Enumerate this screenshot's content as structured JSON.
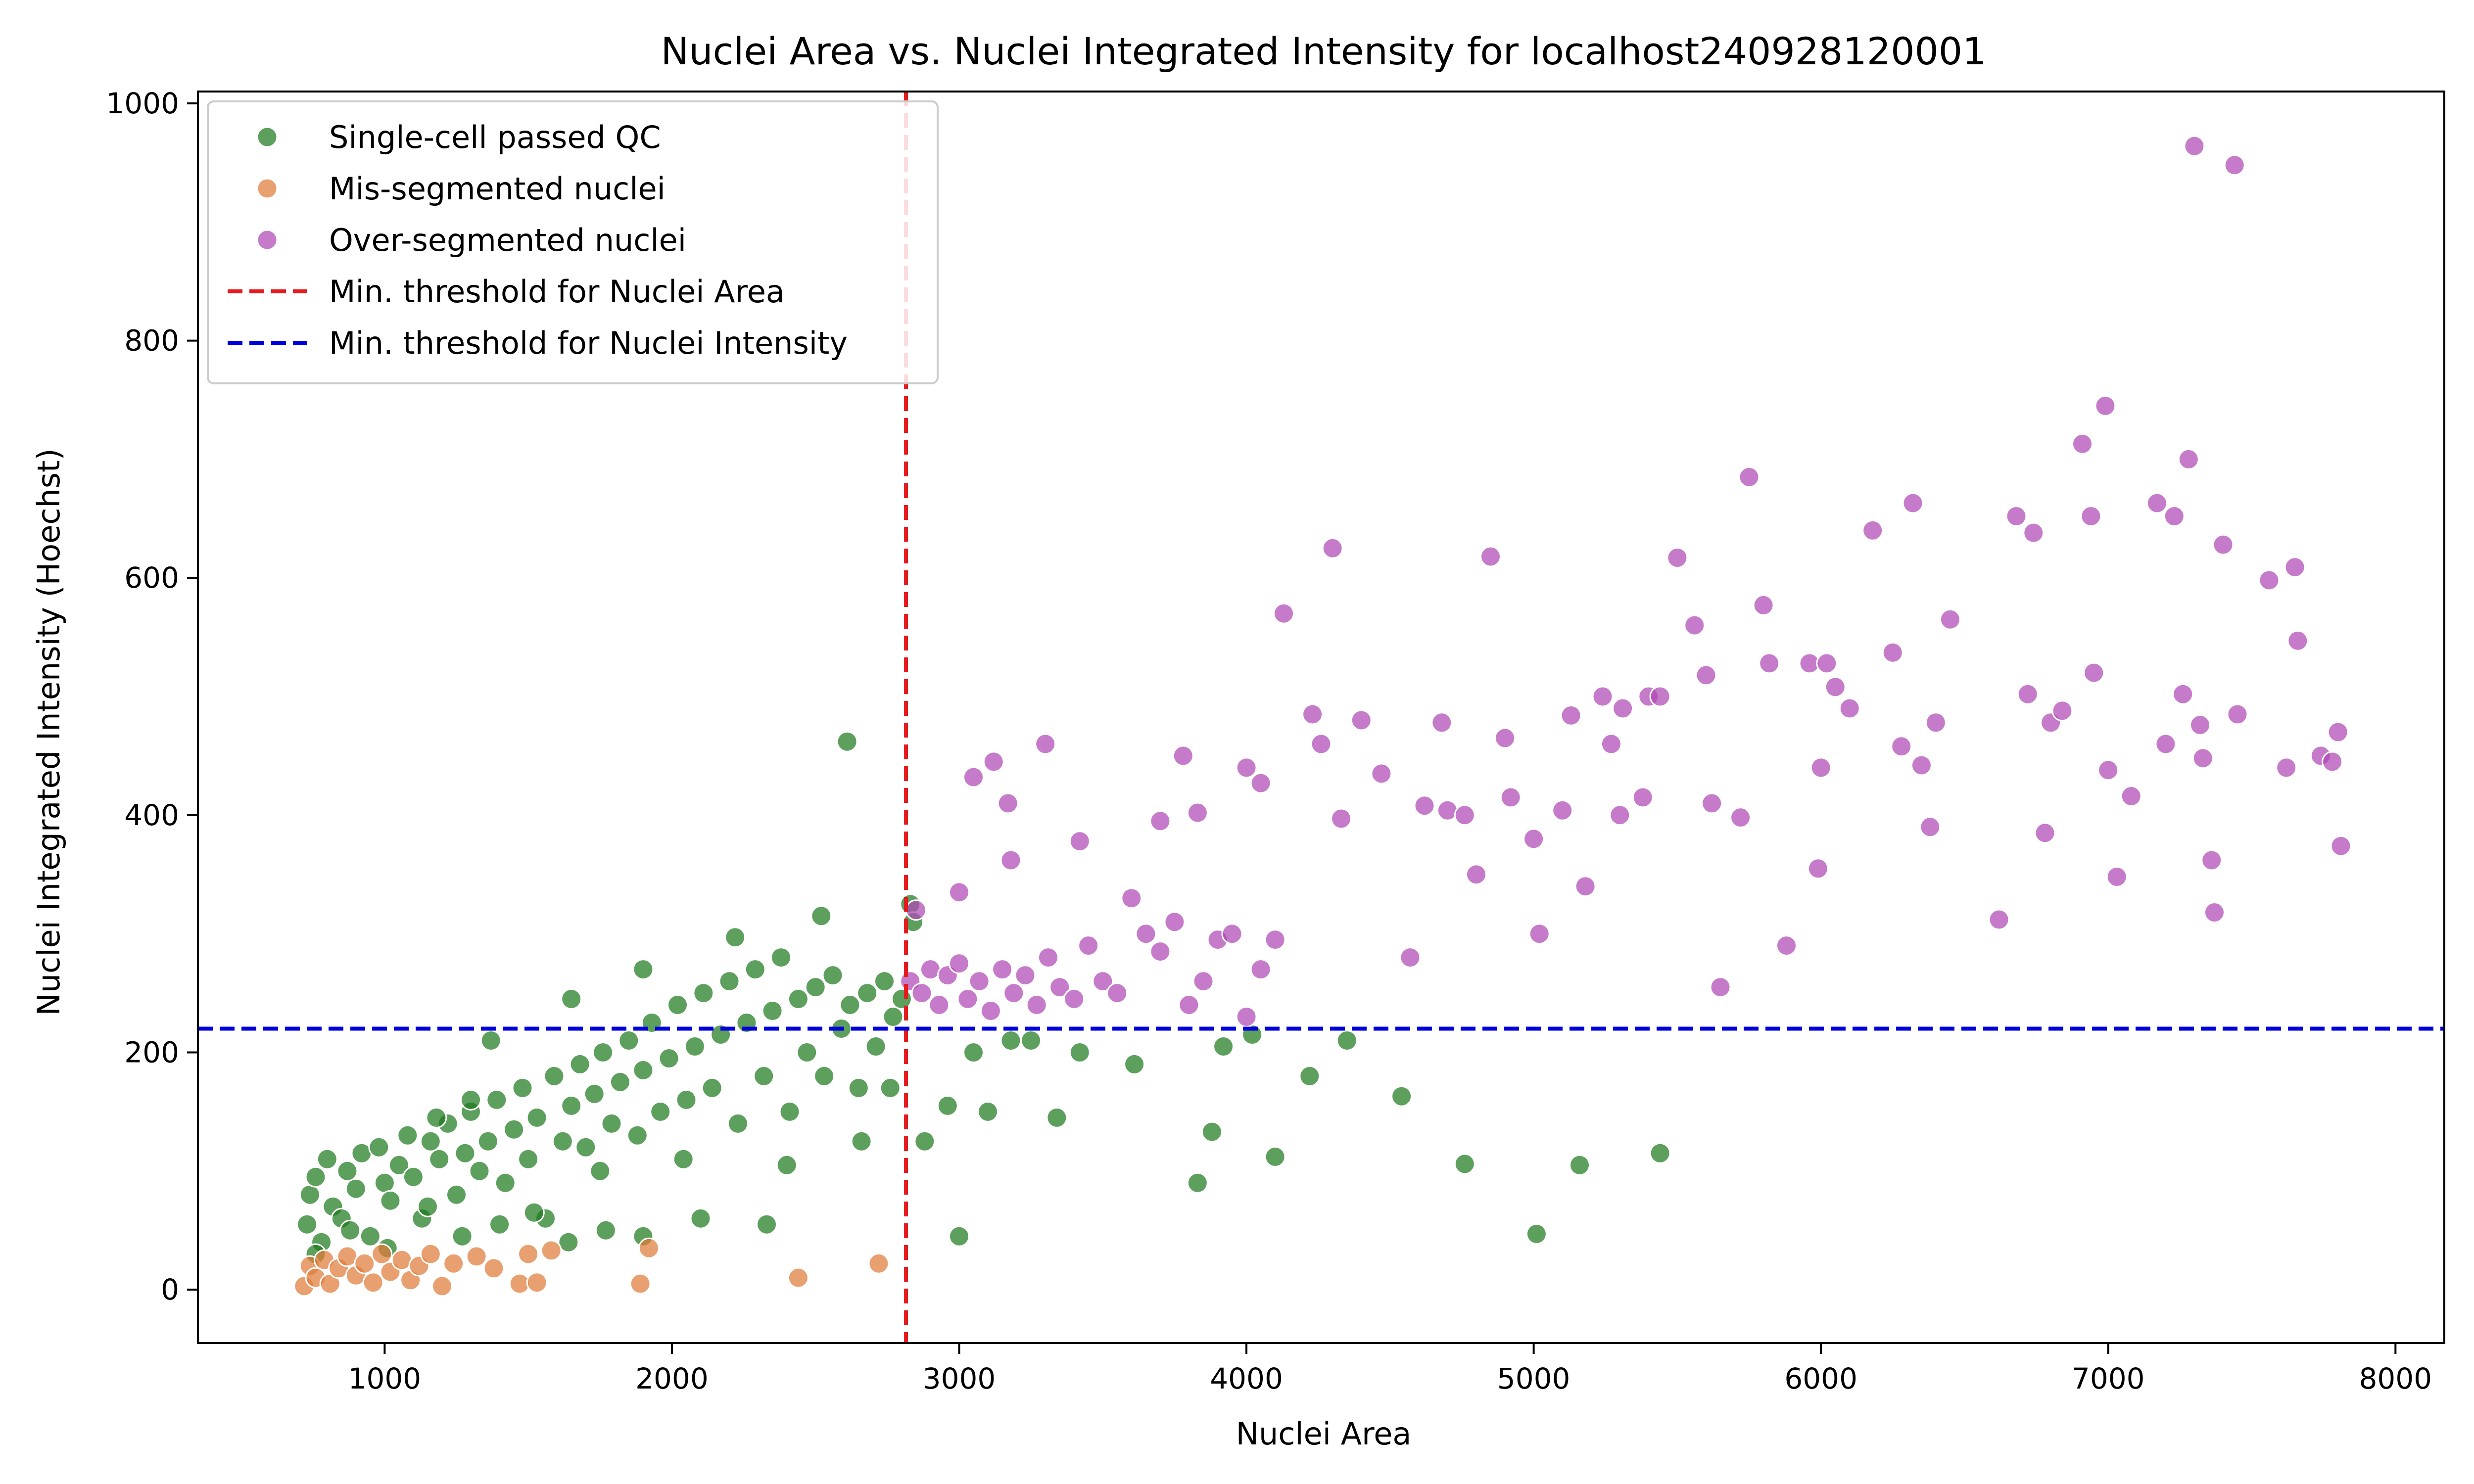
{
  "chart_data": {
    "type": "scatter",
    "title": "Nuclei Area vs. Nuclei Integrated Intensity for localhost240928120001",
    "xlabel": "Nuclei Area",
    "ylabel": "Nuclei Integrated Intensity (Hoechst)",
    "xlim": [
      350,
      8170
    ],
    "ylim": [
      -45,
      1010
    ],
    "xticks": [
      1000,
      2000,
      3000,
      4000,
      5000,
      6000,
      7000,
      8000
    ],
    "yticks": [
      0,
      200,
      400,
      600,
      800,
      1000
    ],
    "grid": false,
    "legend_position": "top-left",
    "thresholds": {
      "area": {
        "label": "Min. threshold for Nuclei Area",
        "value": 2815,
        "color": "#e41a1c"
      },
      "intensity": {
        "label": "Min. threshold for Nuclei Intensity",
        "value": 220,
        "color": "#0000dd"
      }
    },
    "series": [
      {
        "name": "Single-cell passed QC",
        "color": "#1f7a1f",
        "points": [
          [
            730,
            55
          ],
          [
            740,
            80
          ],
          [
            760,
            95
          ],
          [
            780,
            40
          ],
          [
            800,
            110
          ],
          [
            820,
            70
          ],
          [
            850,
            60
          ],
          [
            870,
            100
          ],
          [
            900,
            85
          ],
          [
            920,
            115
          ],
          [
            950,
            45
          ],
          [
            980,
            120
          ],
          [
            1000,
            90
          ],
          [
            1020,
            75
          ],
          [
            1050,
            105
          ],
          [
            1080,
            130
          ],
          [
            1100,
            95
          ],
          [
            1130,
            60
          ],
          [
            1160,
            125
          ],
          [
            1190,
            110
          ],
          [
            1220,
            140
          ],
          [
            1250,
            80
          ],
          [
            1280,
            115
          ],
          [
            1300,
            150
          ],
          [
            1330,
            100
          ],
          [
            1360,
            125
          ],
          [
            1390,
            160
          ],
          [
            1420,
            90
          ],
          [
            1450,
            135
          ],
          [
            1480,
            170
          ],
          [
            1500,
            110
          ],
          [
            1530,
            145
          ],
          [
            1560,
            60
          ],
          [
            1590,
            180
          ],
          [
            1620,
            125
          ],
          [
            1650,
            155
          ],
          [
            1680,
            190
          ],
          [
            1700,
            120
          ],
          [
            1730,
            165
          ],
          [
            1760,
            200
          ],
          [
            1790,
            140
          ],
          [
            1820,
            175
          ],
          [
            1850,
            210
          ],
          [
            1880,
            130
          ],
          [
            1900,
            185
          ],
          [
            1930,
            225
          ],
          [
            1960,
            150
          ],
          [
            1990,
            195
          ],
          [
            2020,
            240
          ],
          [
            2050,
            160
          ],
          [
            2080,
            205
          ],
          [
            2110,
            250
          ],
          [
            2140,
            170
          ],
          [
            2170,
            215
          ],
          [
            2200,
            260
          ],
          [
            2230,
            140
          ],
          [
            2260,
            225
          ],
          [
            2290,
            270
          ],
          [
            2320,
            180
          ],
          [
            2350,
            235
          ],
          [
            2380,
            280
          ],
          [
            2410,
            150
          ],
          [
            2440,
            245
          ],
          [
            2470,
            200
          ],
          [
            2500,
            255
          ],
          [
            2530,
            180
          ],
          [
            2560,
            265
          ],
          [
            2590,
            220
          ],
          [
            2620,
            240
          ],
          [
            2650,
            170
          ],
          [
            2680,
            250
          ],
          [
            2710,
            205
          ],
          [
            2740,
            260
          ],
          [
            2770,
            230
          ],
          [
            2800,
            245
          ],
          [
            760,
            30
          ],
          [
            880,
            50
          ],
          [
            1010,
            35
          ],
          [
            1150,
            70
          ],
          [
            1270,
            45
          ],
          [
            1400,
            55
          ],
          [
            1520,
            65
          ],
          [
            1640,
            40
          ],
          [
            1770,
            50
          ],
          [
            1900,
            45
          ],
          [
            2100,
            60
          ],
          [
            2330,
            55
          ],
          [
            2610,
            462
          ],
          [
            2520,
            315
          ],
          [
            2220,
            297
          ],
          [
            1900,
            270
          ],
          [
            1650,
            245
          ],
          [
            1370,
            210
          ],
          [
            1300,
            160
          ],
          [
            1180,
            145
          ],
          [
            1750,
            100
          ],
          [
            2040,
            110
          ],
          [
            2400,
            105
          ],
          [
            2660,
            125
          ],
          [
            2760,
            170
          ],
          [
            2880,
            125
          ],
          [
            2960,
            155
          ],
          [
            3000,
            45
          ],
          [
            3050,
            200
          ],
          [
            3100,
            150
          ],
          [
            3180,
            210
          ],
          [
            3250,
            210
          ],
          [
            3340,
            145
          ],
          [
            3420,
            200
          ],
          [
            3610,
            190
          ],
          [
            3830,
            90
          ],
          [
            3880,
            133
          ],
          [
            3920,
            205
          ],
          [
            4020,
            215
          ],
          [
            4100,
            112
          ],
          [
            4220,
            180
          ],
          [
            4350,
            210
          ],
          [
            4540,
            163
          ],
          [
            4760,
            106
          ],
          [
            5010,
            47
          ],
          [
            5160,
            105
          ],
          [
            5440,
            115
          ],
          [
            2830,
            325
          ],
          [
            2840,
            310
          ]
        ]
      },
      {
        "name": "Mis-segmented nuclei",
        "color": "#e07b39",
        "points": [
          [
            720,
            3
          ],
          [
            740,
            20
          ],
          [
            760,
            10
          ],
          [
            790,
            25
          ],
          [
            810,
            5
          ],
          [
            840,
            18
          ],
          [
            870,
            28
          ],
          [
            900,
            12
          ],
          [
            930,
            22
          ],
          [
            960,
            6
          ],
          [
            990,
            30
          ],
          [
            1020,
            15
          ],
          [
            1060,
            25
          ],
          [
            1090,
            8
          ],
          [
            1120,
            20
          ],
          [
            1160,
            30
          ],
          [
            1200,
            3
          ],
          [
            1240,
            22
          ],
          [
            1320,
            28
          ],
          [
            1380,
            18
          ],
          [
            1470,
            5
          ],
          [
            1500,
            30
          ],
          [
            1530,
            6
          ],
          [
            1580,
            33
          ],
          [
            1890,
            5
          ],
          [
            1920,
            35
          ],
          [
            2440,
            10
          ],
          [
            2720,
            22
          ]
        ]
      },
      {
        "name": "Over-segmented nuclei",
        "color": "#b048b5",
        "points": [
          [
            2830,
            260
          ],
          [
            2870,
            250
          ],
          [
            2900,
            270
          ],
          [
            2930,
            240
          ],
          [
            2960,
            265
          ],
          [
            3000,
            275
          ],
          [
            3030,
            245
          ],
          [
            3070,
            260
          ],
          [
            3110,
            235
          ],
          [
            3150,
            270
          ],
          [
            3190,
            250
          ],
          [
            3230,
            265
          ],
          [
            3270,
            240
          ],
          [
            3310,
            280
          ],
          [
            3350,
            255
          ],
          [
            3400,
            245
          ],
          [
            3450,
            290
          ],
          [
            3500,
            260
          ],
          [
            3550,
            250
          ],
          [
            3600,
            330
          ],
          [
            3650,
            300
          ],
          [
            3700,
            285
          ],
          [
            3750,
            310
          ],
          [
            3800,
            240
          ],
          [
            3850,
            260
          ],
          [
            3900,
            295
          ],
          [
            3950,
            300
          ],
          [
            4000,
            230
          ],
          [
            4050,
            270
          ],
          [
            4100,
            295
          ],
          [
            2850,
            320
          ],
          [
            3000,
            335
          ],
          [
            3050,
            432
          ],
          [
            3120,
            445
          ],
          [
            3170,
            410
          ],
          [
            3180,
            362
          ],
          [
            3300,
            460
          ],
          [
            3420,
            378
          ],
          [
            3700,
            395
          ],
          [
            3780,
            450
          ],
          [
            3830,
            402
          ],
          [
            4000,
            440
          ],
          [
            4050,
            427
          ],
          [
            4130,
            570
          ],
          [
            4230,
            485
          ],
          [
            4260,
            460
          ],
          [
            4300,
            625
          ],
          [
            4330,
            397
          ],
          [
            4400,
            480
          ],
          [
            4470,
            435
          ],
          [
            4570,
            280
          ],
          [
            4620,
            408
          ],
          [
            4680,
            478
          ],
          [
            4700,
            404
          ],
          [
            4760,
            400
          ],
          [
            4800,
            350
          ],
          [
            4850,
            618
          ],
          [
            4900,
            465
          ],
          [
            4920,
            415
          ],
          [
            5000,
            380
          ],
          [
            5020,
            300
          ],
          [
            5100,
            404
          ],
          [
            5130,
            484
          ],
          [
            5180,
            340
          ],
          [
            5240,
            500
          ],
          [
            5270,
            460
          ],
          [
            5300,
            400
          ],
          [
            5310,
            490
          ],
          [
            5380,
            415
          ],
          [
            5400,
            500
          ],
          [
            5440,
            500
          ],
          [
            5500,
            617
          ],
          [
            5560,
            560
          ],
          [
            5600,
            518
          ],
          [
            5620,
            410
          ],
          [
            5650,
            255
          ],
          [
            5720,
            398
          ],
          [
            5750,
            685
          ],
          [
            5800,
            577
          ],
          [
            5820,
            528
          ],
          [
            5880,
            290
          ],
          [
            5960,
            528
          ],
          [
            5990,
            355
          ],
          [
            6000,
            440
          ],
          [
            6020,
            528
          ],
          [
            6050,
            508
          ],
          [
            6100,
            490
          ],
          [
            6180,
            640
          ],
          [
            6250,
            537
          ],
          [
            6280,
            458
          ],
          [
            6320,
            663
          ],
          [
            6350,
            442
          ],
          [
            6380,
            390
          ],
          [
            6400,
            478
          ],
          [
            6450,
            565
          ],
          [
            6620,
            312
          ],
          [
            6680,
            652
          ],
          [
            6720,
            502
          ],
          [
            6740,
            638
          ],
          [
            6780,
            385
          ],
          [
            6800,
            478
          ],
          [
            6840,
            488
          ],
          [
            6910,
            713
          ],
          [
            6940,
            652
          ],
          [
            6990,
            745
          ],
          [
            7000,
            438
          ],
          [
            7030,
            348
          ],
          [
            7080,
            416
          ],
          [
            7170,
            663
          ],
          [
            7200,
            460
          ],
          [
            7230,
            652
          ],
          [
            7260,
            502
          ],
          [
            7280,
            700
          ],
          [
            7300,
            964
          ],
          [
            7320,
            476
          ],
          [
            7330,
            448
          ],
          [
            7360,
            362
          ],
          [
            7370,
            318
          ],
          [
            7400,
            628
          ],
          [
            7440,
            948
          ],
          [
            7450,
            485
          ],
          [
            7560,
            598
          ],
          [
            7620,
            440
          ],
          [
            7650,
            609
          ],
          [
            7660,
            547
          ],
          [
            7740,
            450
          ],
          [
            7780,
            445
          ],
          [
            7800,
            470
          ],
          [
            7810,
            374
          ],
          [
            6950,
            520
          ]
        ]
      }
    ]
  }
}
